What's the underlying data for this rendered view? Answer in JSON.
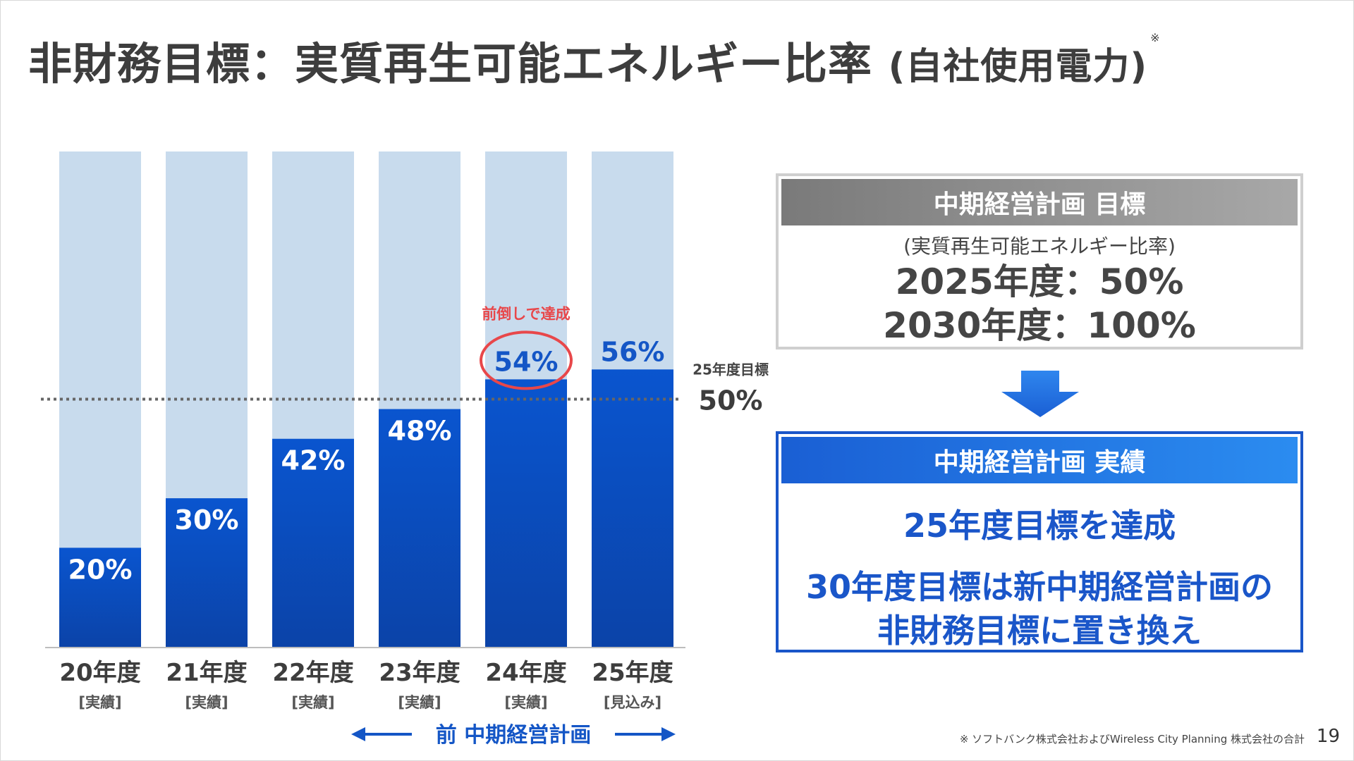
{
  "page": {
    "title_main": "非財務目標：実質再生可能エネルギー比率",
    "title_paren": "(自社使用電力)",
    "title_mark": "※",
    "footnote": "※ ソフトバンク株式会社およびWireless City Planning 株式会社の合計",
    "page_number": "19"
  },
  "chart_data": {
    "type": "bar",
    "categories": [
      "20年度",
      "21年度",
      "22年度",
      "23年度",
      "24年度",
      "25年度"
    ],
    "category_sublabels": [
      "[実績]",
      "[実績]",
      "[実績]",
      "[実績]",
      "[実績]",
      "[見込み]"
    ],
    "values": [
      20,
      30,
      42,
      48,
      54,
      56
    ],
    "value_labels": [
      "20%",
      "30%",
      "42%",
      "48%",
      "54%",
      "56%"
    ],
    "ylim": [
      0,
      100
    ],
    "target_line": {
      "value": 50,
      "label_top": "25年度目標",
      "label_bottom": "50%"
    },
    "highlight": {
      "index": 4,
      "text": "前倒しで達成",
      "color": "#e8474a"
    },
    "period_label": "前 中期経営計画",
    "colors": {
      "bar": "#1456c6",
      "bar_top": "#0a55cf",
      "bar_bottom": "#0b43a8",
      "track": "#c8dbed",
      "target_line": "#666666"
    }
  },
  "goal_box": {
    "header": "中期経営計画 目標",
    "sub": "(実質再生可能エネルギー比率)",
    "line1": "2025年度：50%",
    "line2": "2030年度：100%"
  },
  "result_box": {
    "header": "中期経営計画 実績",
    "line1": "25年度目標を達成",
    "line2": "30年度目標は新中期経営計画の",
    "line3": "非財務目標に置き換え"
  }
}
